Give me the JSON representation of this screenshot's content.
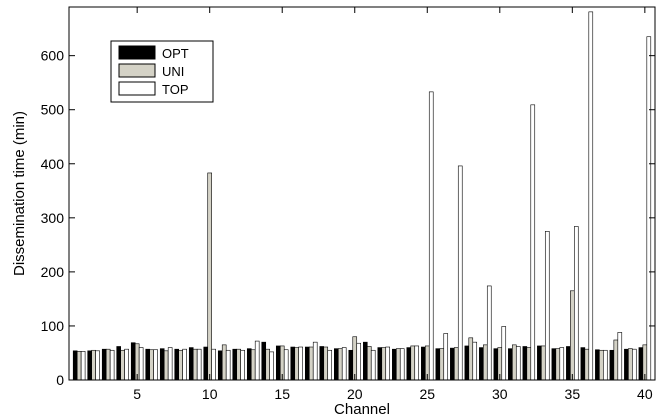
{
  "chart_data": {
    "type": "bar",
    "xlabel": "Channel",
    "ylabel": "Dissemination time (min)",
    "ylim": [
      0,
      690
    ],
    "xlim": [
      0.3,
      40.7
    ],
    "yticks": [
      0,
      100,
      200,
      300,
      400,
      500,
      600
    ],
    "xticks": [
      5,
      10,
      15,
      20,
      25,
      30,
      35,
      40
    ],
    "grid": false,
    "legend_position": "top-left",
    "categories": [
      1,
      2,
      3,
      4,
      5,
      6,
      7,
      8,
      9,
      10,
      11,
      12,
      13,
      14,
      15,
      16,
      17,
      18,
      19,
      20,
      21,
      22,
      23,
      24,
      25,
      26,
      27,
      28,
      29,
      30,
      31,
      32,
      33,
      34,
      35,
      36,
      37,
      38,
      39,
      40
    ],
    "series": [
      {
        "name": "OPT",
        "color": "#000000",
        "values": [
          54,
          54,
          57,
          62,
          69,
          57,
          58,
          57,
          60,
          61,
          54,
          57,
          58,
          70,
          63,
          61,
          61,
          62,
          58,
          55,
          70,
          60,
          57,
          60,
          61,
          58,
          59,
          63,
          60,
          58,
          58,
          62,
          63,
          58,
          62,
          60,
          56,
          55,
          57,
          60
        ]
      },
      {
        "name": "UNI",
        "color": "#d4d2c6",
        "values": [
          53,
          55,
          57,
          55,
          67,
          56,
          54,
          55,
          57,
          383,
          65,
          57,
          56,
          57,
          63,
          60,
          61,
          61,
          58,
          80,
          62,
          60,
          58,
          63,
          63,
          58,
          60,
          78,
          65,
          60,
          65,
          60,
          63,
          58,
          165,
          57,
          55,
          74,
          58,
          65
        ]
      },
      {
        "name": "TOP",
        "color": "#ffffff",
        "values": [
          53,
          54,
          55,
          57,
          60,
          56,
          60,
          57,
          57,
          57,
          55,
          55,
          72,
          52,
          56,
          61,
          70,
          55,
          60,
          68,
          55,
          61,
          58,
          63,
          533,
          86,
          396,
          70,
          174,
          99,
          62,
          509,
          275,
          60,
          284,
          681,
          55,
          88,
          57,
          635
        ]
      }
    ]
  }
}
